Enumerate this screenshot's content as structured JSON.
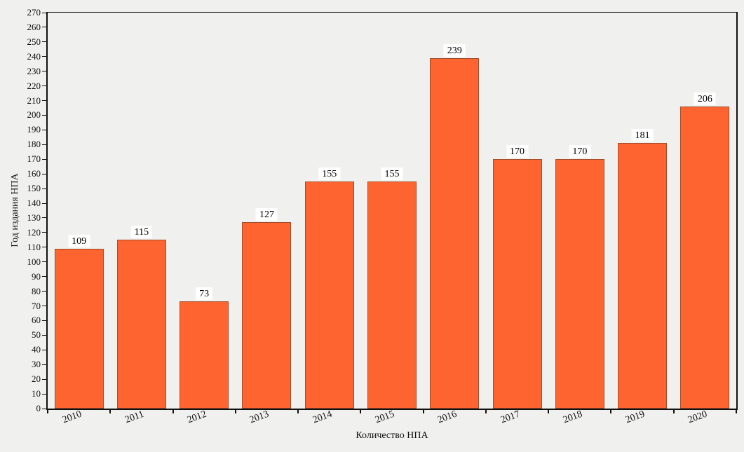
{
  "chart_data": {
    "type": "bar",
    "categories": [
      "2010",
      "2011",
      "2012",
      "2013",
      "2014",
      "2015",
      "2016",
      "2017",
      "2018",
      "2019",
      "2020"
    ],
    "values": [
      109,
      115,
      73,
      127,
      155,
      155,
      239,
      170,
      170,
      181,
      206
    ],
    "title": "",
    "xlabel": "Количество НПА",
    "ylabel": "Год издания НПА",
    "ylim": [
      0,
      270
    ],
    "ytick_step": 10,
    "grid": false,
    "legend": false,
    "value_labels_shown": true,
    "colors": {
      "bar_fill": "#fd6430",
      "bar_border": "#a34d2a",
      "background": "#f0f0ee",
      "value_label_background": "#ffffff",
      "axis": "#111111"
    }
  }
}
